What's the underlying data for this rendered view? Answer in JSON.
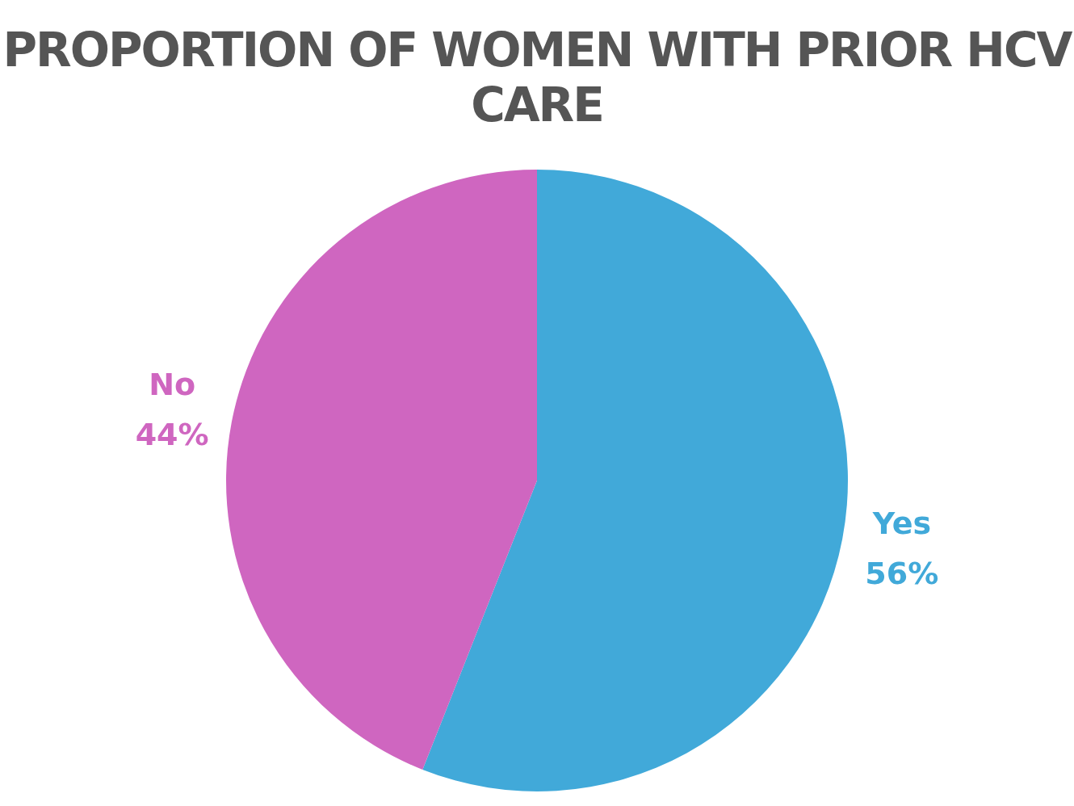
{
  "chart_data": {
    "type": "pie",
    "title": "PROPORTION OF WOMEN WITH PRIOR HCV CARE",
    "categories": [
      "Yes",
      "No"
    ],
    "values": [
      56,
      44
    ],
    "value_labels": [
      "56%",
      "44%"
    ],
    "colors": [
      "#41a9d9",
      "#cf66c0"
    ]
  }
}
